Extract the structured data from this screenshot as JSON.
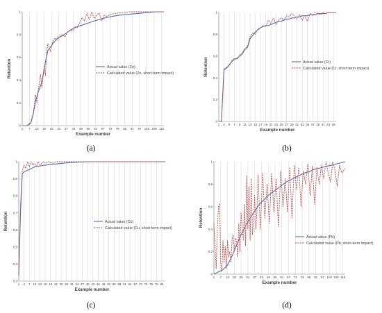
{
  "chart_data": [
    {
      "panel": "(a)",
      "type": "line",
      "xlabel": "Example number",
      "ylabel": "Retention",
      "xticks": [
        "1",
        "7",
        "13",
        "19",
        "25",
        "31",
        "37",
        "43",
        "49",
        "55",
        "61",
        "67",
        "73",
        "79",
        "85",
        "91",
        "97",
        "103",
        "109",
        "115"
      ],
      "ylim": [
        0,
        1
      ],
      "yticks": [
        "0",
        "0.2",
        "0.4",
        "0.6",
        "0.8",
        "1"
      ],
      "legend_position": "center-right",
      "grid": "vertical",
      "series": [
        {
          "name": "Actual value (Zn)",
          "color": "#4a6fb8",
          "style": "solid",
          "x": [
            1,
            5,
            8,
            10,
            12,
            14,
            17,
            20,
            22,
            26,
            30,
            34,
            38,
            42,
            46,
            52,
            60,
            70,
            80,
            90,
            100,
            110,
            117
          ],
          "y": [
            0.0,
            0.0,
            0.02,
            0.1,
            0.22,
            0.29,
            0.38,
            0.56,
            0.66,
            0.72,
            0.77,
            0.79,
            0.82,
            0.85,
            0.87,
            0.89,
            0.92,
            0.95,
            0.97,
            0.98,
            0.99,
            1.0,
            1.0
          ]
        },
        {
          "name": "Calculated value (Zn, short-term impact)",
          "color": "#c0504d",
          "style": "dashed",
          "x": [
            1,
            5,
            8,
            10,
            12,
            13,
            14,
            16,
            17,
            19,
            20,
            21,
            22,
            24,
            26,
            28,
            30,
            32,
            34,
            36,
            38,
            40,
            42,
            44,
            46,
            48,
            50,
            52,
            54,
            56,
            58,
            60,
            62,
            64,
            66,
            68,
            70,
            74,
            80,
            90,
            100,
            110,
            117
          ],
          "y": [
            0.0,
            0.0,
            0.03,
            0.11,
            0.27,
            0.2,
            0.3,
            0.45,
            0.33,
            0.52,
            0.44,
            0.65,
            0.72,
            0.65,
            0.74,
            0.77,
            0.75,
            0.79,
            0.8,
            0.78,
            0.82,
            0.84,
            0.83,
            0.87,
            0.86,
            0.9,
            0.95,
            0.92,
            0.99,
            0.93,
            1.0,
            0.94,
            0.97,
            0.99,
            0.92,
            0.97,
            0.96,
            0.98,
            0.99,
            1.0,
            1.0,
            1.0,
            1.0
          ]
        }
      ]
    },
    {
      "panel": "(b)",
      "type": "line",
      "xlabel": "Example number",
      "ylabel": "Retention",
      "xticks": [
        "1",
        "3",
        "5",
        "7",
        "9",
        "11",
        "13",
        "15",
        "17",
        "19",
        "21",
        "23",
        "25",
        "27",
        "29",
        "31",
        "33",
        "35",
        "37",
        "39",
        "41",
        "43",
        "45"
      ],
      "ylim": [
        0,
        1
      ],
      "yticks": [
        "0",
        "0.2",
        "0.4",
        "0.6",
        "0.8",
        "1"
      ],
      "legend_position": "center-right",
      "grid": "vertical",
      "series": [
        {
          "name": "Actual value (Cr)",
          "color": "#4a6fb8",
          "style": "solid",
          "x": [
            1,
            2,
            3,
            4,
            5,
            6,
            7,
            8,
            9,
            10,
            11,
            12,
            13,
            14,
            15,
            16,
            17,
            18,
            19,
            20,
            21,
            22,
            23,
            24,
            25,
            26,
            27,
            28,
            29,
            30,
            31,
            32,
            33,
            34,
            35,
            36,
            37,
            38,
            39,
            40,
            41,
            42,
            43,
            44,
            45,
            46
          ],
          "y": [
            0.0,
            0.0,
            0.48,
            0.49,
            0.52,
            0.55,
            0.57,
            0.58,
            0.6,
            0.62,
            0.66,
            0.68,
            0.76,
            0.79,
            0.82,
            0.84,
            0.86,
            0.87,
            0.88,
            0.88,
            0.89,
            0.9,
            0.91,
            0.92,
            0.92,
            0.93,
            0.94,
            0.94,
            0.95,
            0.95,
            0.96,
            0.96,
            0.97,
            0.97,
            0.97,
            0.98,
            0.98,
            0.98,
            0.99,
            0.99,
            0.99,
            0.99,
            1.0,
            1.0,
            1.0,
            1.0
          ]
        },
        {
          "name": "Calculated value (Cr, short-term impact)",
          "color": "#c0504d",
          "style": "dashed",
          "x": [
            1,
            2,
            3,
            4,
            5,
            6,
            7,
            8,
            9,
            10,
            11,
            12,
            13,
            14,
            15,
            16,
            17,
            18,
            19,
            20,
            21,
            22,
            23,
            24,
            25,
            26,
            27,
            28,
            29,
            30,
            31,
            32,
            33,
            34,
            35,
            36,
            37,
            38,
            39,
            40,
            41,
            42,
            43,
            44,
            45,
            46
          ],
          "y": [
            0.0,
            0.0,
            0.46,
            0.5,
            0.51,
            0.56,
            0.58,
            0.57,
            0.61,
            0.63,
            0.67,
            0.69,
            0.78,
            0.81,
            0.8,
            0.85,
            0.86,
            0.88,
            0.87,
            0.93,
            0.9,
            0.95,
            0.89,
            0.93,
            0.95,
            0.93,
            0.97,
            0.96,
            0.99,
            0.97,
            0.94,
            0.98,
            0.93,
            0.97,
            0.92,
            0.99,
            0.97,
            1.0,
            0.99,
            0.98,
            1.0,
            0.99,
            1.0,
            1.0,
            1.0,
            1.0
          ]
        }
      ]
    },
    {
      "panel": "(c)",
      "type": "line",
      "xlabel": "Example number",
      "ylabel": "Retention",
      "xticks": [
        "1",
        "4",
        "7",
        "10",
        "13",
        "16",
        "19",
        "22",
        "25",
        "28",
        "31",
        "34",
        "37",
        "40",
        "43",
        "46",
        "49",
        "52",
        "55",
        "58",
        "61",
        "64",
        "67",
        "70",
        "73",
        "76",
        "79",
        "82"
      ],
      "ylim": [
        0.3,
        1
      ],
      "yticks": [
        "0.3",
        "0.4",
        "0.5",
        "0.6",
        "0.7",
        "0.8",
        "0.9",
        "1"
      ],
      "legend_position": "center-right",
      "grid": "vertical",
      "series": [
        {
          "name": "Actual value (Cu)",
          "color": "#4a6fb8",
          "style": "solid",
          "x": [
            1,
            2,
            3,
            4,
            6,
            8,
            10,
            13,
            16,
            20,
            25,
            30,
            40,
            50,
            60,
            70,
            84
          ],
          "y": [
            0.33,
            0.7,
            0.93,
            0.94,
            0.95,
            0.96,
            0.97,
            0.975,
            0.98,
            0.985,
            0.99,
            0.995,
            1.0,
            1.0,
            1.0,
            1.0,
            1.0
          ]
        },
        {
          "name": "Calculated value (Cu, short-term impact)",
          "color": "#c0504d",
          "style": "dashed",
          "x": [
            1,
            2,
            3,
            4,
            5,
            6,
            7,
            8,
            9,
            10,
            11,
            12,
            13,
            14,
            15,
            16,
            18,
            20,
            22,
            25,
            30,
            40,
            50,
            60,
            70,
            84
          ],
          "y": [
            0.33,
            0.75,
            0.95,
            0.98,
            0.96,
            1.0,
            0.97,
            1.0,
            0.98,
            0.99,
            0.97,
            1.0,
            0.98,
            0.99,
            1.0,
            0.99,
            1.0,
            0.99,
            1.0,
            1.0,
            1.0,
            1.0,
            1.0,
            1.0,
            1.0,
            1.0
          ]
        }
      ]
    },
    {
      "panel": "(d)",
      "type": "line",
      "xlabel": "Example number",
      "ylabel": "Retention",
      "xticks": [
        "1",
        "7",
        "13",
        "19",
        "25",
        "31",
        "37",
        "43",
        "49",
        "55",
        "61",
        "67",
        "73",
        "79",
        "85",
        "91",
        "97",
        "103",
        "109",
        "115"
      ],
      "ylim": [
        0,
        1
      ],
      "yticks": [
        "0",
        "0.2",
        "0.4",
        "0.6",
        "0.8",
        "1"
      ],
      "legend_position": "bottom-right",
      "grid": "vertical",
      "series": [
        {
          "name": "Actual value (Pb)",
          "color": "#4a6fb8",
          "style": "solid",
          "x": [
            1,
            5,
            9,
            13,
            17,
            21,
            25,
            29,
            33,
            37,
            41,
            45,
            49,
            53,
            57,
            61,
            65,
            69,
            73,
            77,
            81,
            85,
            89,
            93,
            97,
            101,
            105,
            109,
            113,
            117
          ],
          "y": [
            0.0,
            0.02,
            0.04,
            0.08,
            0.16,
            0.26,
            0.35,
            0.43,
            0.5,
            0.56,
            0.62,
            0.66,
            0.7,
            0.73,
            0.76,
            0.79,
            0.82,
            0.84,
            0.86,
            0.88,
            0.9,
            0.91,
            0.93,
            0.94,
            0.95,
            0.96,
            0.97,
            0.98,
            0.99,
            1.0
          ]
        },
        {
          "name": "Calculated value (Pb, short-term impact)",
          "color": "#c0504d",
          "style": "dashed",
          "x": [
            1,
            2,
            3,
            4,
            5,
            6,
            7,
            8,
            9,
            10,
            11,
            12,
            13,
            14,
            15,
            16,
            17,
            18,
            19,
            20,
            21,
            22,
            23,
            24,
            25,
            27,
            28,
            29,
            30,
            31,
            32,
            33,
            34,
            35,
            36,
            37,
            38,
            39,
            40,
            42,
            44,
            46,
            48,
            50,
            52,
            54,
            56,
            58,
            60,
            62,
            64,
            66,
            68,
            70,
            72,
            74,
            76,
            78,
            80,
            82,
            84,
            86,
            88,
            90,
            92,
            94,
            96,
            98,
            100,
            102,
            104,
            106,
            108,
            110,
            112,
            114,
            117
          ],
          "y": [
            0.45,
            0.25,
            0.05,
            0.4,
            0.6,
            0.63,
            0.1,
            0.02,
            0.3,
            0.1,
            0.25,
            0.05,
            0.3,
            0.15,
            0.2,
            0.1,
            0.3,
            0.35,
            0.2,
            0.32,
            0.3,
            0.15,
            0.45,
            0.2,
            0.55,
            0.3,
            0.62,
            0.25,
            0.88,
            0.4,
            0.78,
            0.3,
            0.85,
            0.35,
            0.45,
            0.7,
            0.4,
            0.55,
            0.88,
            0.4,
            0.9,
            0.5,
            0.8,
            0.45,
            0.9,
            0.55,
            0.85,
            0.42,
            0.92,
            0.6,
            0.85,
            0.55,
            0.95,
            0.5,
            0.97,
            0.75,
            0.95,
            0.6,
            0.92,
            0.8,
            0.98,
            0.7,
            0.96,
            0.62,
            0.95,
            0.8,
            0.97,
            0.85,
            1.0,
            0.9,
            0.82,
            1.0,
            0.92,
            0.78,
            0.97,
            0.9,
            0.94
          ]
        }
      ]
    }
  ]
}
